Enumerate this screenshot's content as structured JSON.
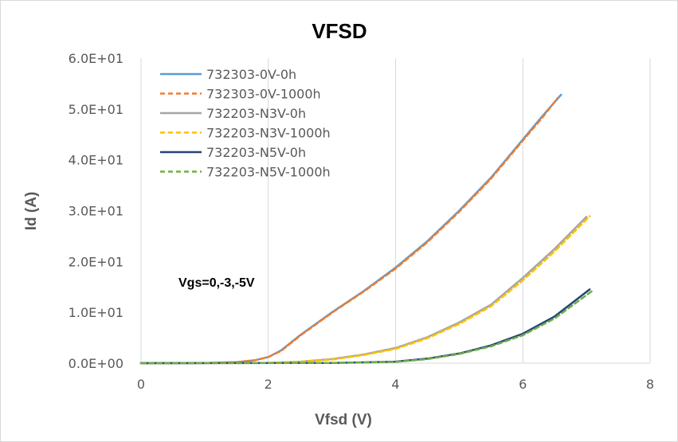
{
  "chart_data": {
    "type": "line",
    "title": "VFSD",
    "xlabel": "Vfsd (V)",
    "ylabel": "Id (A)",
    "xlim": [
      0,
      8
    ],
    "ylim": [
      0,
      60
    ],
    "x_ticks": [
      "0",
      "2",
      "4",
      "6",
      "8"
    ],
    "y_ticks": [
      "0.0E+00",
      "1.0E+01",
      "2.0E+01",
      "3.0E+01",
      "4.0E+01",
      "5.0E+01",
      "6.0E+01"
    ],
    "grid": "vertical",
    "legend_position": "top-left",
    "annotation": "Vgs=0,-3,-5V",
    "series": [
      {
        "name": "732303-0V-0h",
        "color": "#5b9bd5",
        "dash": "solid",
        "x": [
          0,
          1,
          1.5,
          1.8,
          2.0,
          2.2,
          2.5,
          3.0,
          3.5,
          4.0,
          4.5,
          5.0,
          5.5,
          6.0,
          6.3,
          6.6
        ],
        "y": [
          0,
          0.02,
          0.2,
          0.6,
          1.2,
          2.5,
          5.5,
          10,
          14.2,
          18.8,
          24,
          30,
          36.5,
          44,
          48.5,
          52.8
        ]
      },
      {
        "name": "732303-0V-1000h",
        "color": "#ed7d31",
        "dash": "dashed",
        "x": [
          0,
          1,
          1.5,
          1.8,
          2.0,
          2.2,
          2.5,
          3.0,
          3.5,
          4.0,
          4.5,
          5.0,
          5.5,
          6.0,
          6.3,
          6.55
        ],
        "y": [
          0,
          0.02,
          0.2,
          0.6,
          1.2,
          2.4,
          5.4,
          9.9,
          14.1,
          18.6,
          23.8,
          29.8,
          36.3,
          43.8,
          48.2,
          52.2
        ]
      },
      {
        "name": "732203-N3V-0h",
        "color": "#a5a5a5",
        "dash": "solid",
        "x": [
          0,
          2,
          2.5,
          3.0,
          3.5,
          4.0,
          4.5,
          5.0,
          5.5,
          6.0,
          6.5,
          7.0
        ],
        "y": [
          0,
          0.05,
          0.3,
          0.8,
          1.7,
          3.0,
          5.1,
          8.0,
          11.5,
          16.8,
          22.5,
          28.8
        ]
      },
      {
        "name": "732203-N3V-1000h",
        "color": "#ffc000",
        "dash": "dashed",
        "x": [
          0,
          2,
          2.5,
          3.0,
          3.5,
          4.0,
          4.5,
          5.0,
          5.5,
          6.0,
          6.5,
          7.05
        ],
        "y": [
          0,
          0.04,
          0.25,
          0.7,
          1.6,
          2.8,
          4.9,
          7.7,
          11.2,
          16.3,
          22.0,
          28.9
        ]
      },
      {
        "name": "732203-N5V-0h",
        "color": "#264478",
        "dash": "solid",
        "x": [
          0,
          3,
          3.5,
          4.0,
          4.5,
          5.0,
          5.5,
          6.0,
          6.5,
          7.05
        ],
        "y": [
          0,
          0.05,
          0.15,
          0.3,
          0.9,
          1.9,
          3.5,
          5.8,
          9.2,
          14.5
        ]
      },
      {
        "name": "732203-N5V-1000h",
        "color": "#70ad47",
        "dash": "dashed",
        "x": [
          0,
          3,
          3.5,
          4.0,
          4.5,
          5.0,
          5.5,
          6.0,
          6.5,
          7.1
        ],
        "y": [
          0,
          0.04,
          0.12,
          0.25,
          0.8,
          1.8,
          3.3,
          5.5,
          8.8,
          14.3
        ]
      }
    ]
  }
}
